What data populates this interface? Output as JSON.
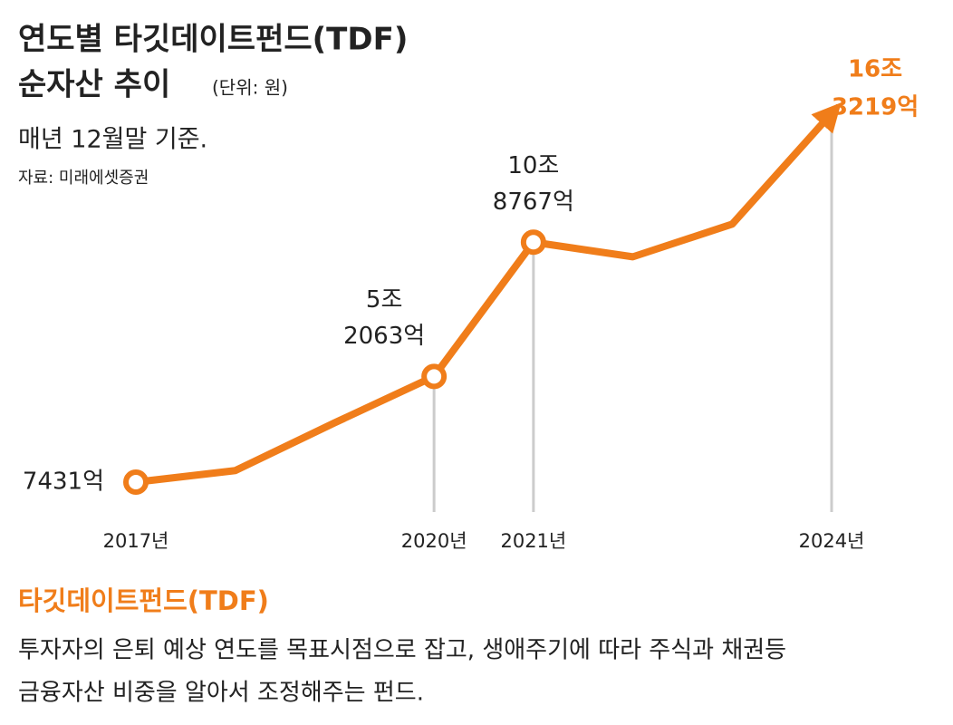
{
  "chart_data": {
    "type": "line",
    "title": [
      "연도별 타깃데이트펀드(TDF)",
      "순자산 추이"
    ],
    "unit": "(단위: 원)",
    "subtitle": "매년 12월말 기준.",
    "source": "자료: 미래에셋증권",
    "categories": [
      "2017년",
      null,
      null,
      "2020년",
      "2021년",
      null,
      null,
      "2024년"
    ],
    "series": [
      {
        "color": "#f07d1a",
        "values": [
          7431,
          12300,
          32500,
          52063,
          108767,
          102600,
          116400,
          163219
        ],
        "value_labels": [
          [
            "7431억"
          ],
          null,
          null,
          [
            "5조",
            "2063억"
          ],
          [
            "10조",
            "8767억"
          ],
          null,
          null,
          [
            "16조",
            "3219억"
          ]
        ]
      }
    ]
  },
  "footer": {
    "heading": "타깃데이트펀드(TDF)",
    "lines": [
      "투자자의 은퇴 예상 연도를 목표시점으로 잡고, 생애주기에 따라 주식과 채권등",
      "금융자산 비중을 알아서 조정해주는 펀드."
    ]
  }
}
